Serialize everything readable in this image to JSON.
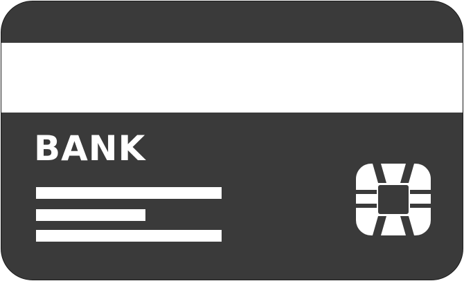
{
  "card": {
    "bank_label": "BANK",
    "icon": "credit-card-icon",
    "chip_icon": "chip-icon",
    "colors": {
      "body": "#3a3a3a",
      "stripe": "#ffffff",
      "text": "#ffffff",
      "text_lines": "#ffffff",
      "chip": "#ffffff"
    }
  }
}
